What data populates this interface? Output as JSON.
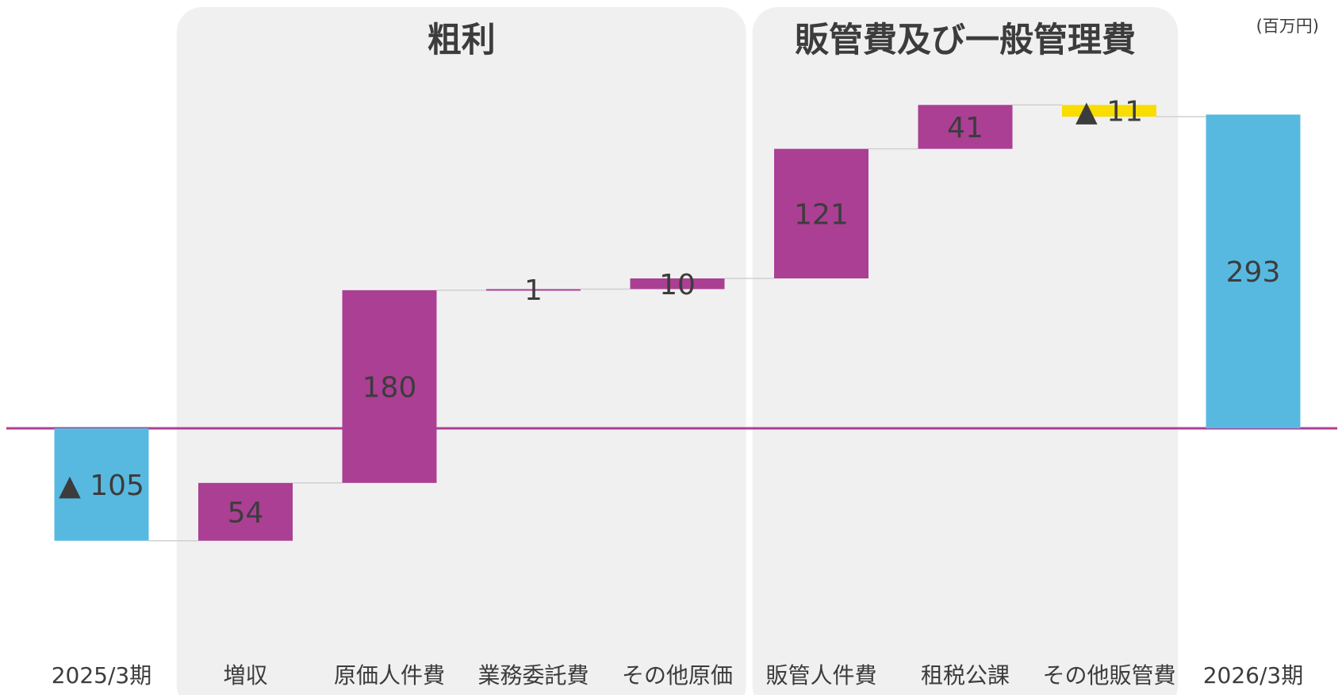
{
  "unit_label": "(百万円)",
  "colors": {
    "total": "#58B9E0",
    "increase": "#AB3F94",
    "decrease": "#F9DC00",
    "group_bg": "#F0F0F0",
    "zero_line": "#AB3F94",
    "connector": "#D0D0D0",
    "text": "#3C3C3C"
  },
  "chart_data": {
    "type": "bar",
    "subtype": "waterfall",
    "unit": "(百万円)",
    "groups": [
      {
        "label": "粗利",
        "categories": [
          "増収",
          "原価人件費",
          "業務委託費",
          "その他原価"
        ]
      },
      {
        "label": "販管費及び一般管理費",
        "categories": [
          "販管人件費",
          "租税公課",
          "その他販管費"
        ]
      }
    ],
    "items": [
      {
        "category": "2025/3期",
        "kind": "total",
        "value": -105,
        "label": "▲ 105"
      },
      {
        "category": "増収",
        "kind": "increase",
        "value": 54,
        "label": "54"
      },
      {
        "category": "原価人件費",
        "kind": "increase",
        "value": 180,
        "label": "180"
      },
      {
        "category": "業務委託費",
        "kind": "increase",
        "value": 1,
        "label": "1"
      },
      {
        "category": "その他原価",
        "kind": "increase",
        "value": 10,
        "label": "10"
      },
      {
        "category": "販管人件費",
        "kind": "increase",
        "value": 121,
        "label": "121"
      },
      {
        "category": "租税公課",
        "kind": "increase",
        "value": 41,
        "label": "41"
      },
      {
        "category": "その他販管費",
        "kind": "decrease",
        "value": -11,
        "label": "▲ 11"
      },
      {
        "category": "2026/3期",
        "kind": "total",
        "value": 293,
        "label": "293"
      }
    ],
    "legend": "none",
    "grid": false
  }
}
